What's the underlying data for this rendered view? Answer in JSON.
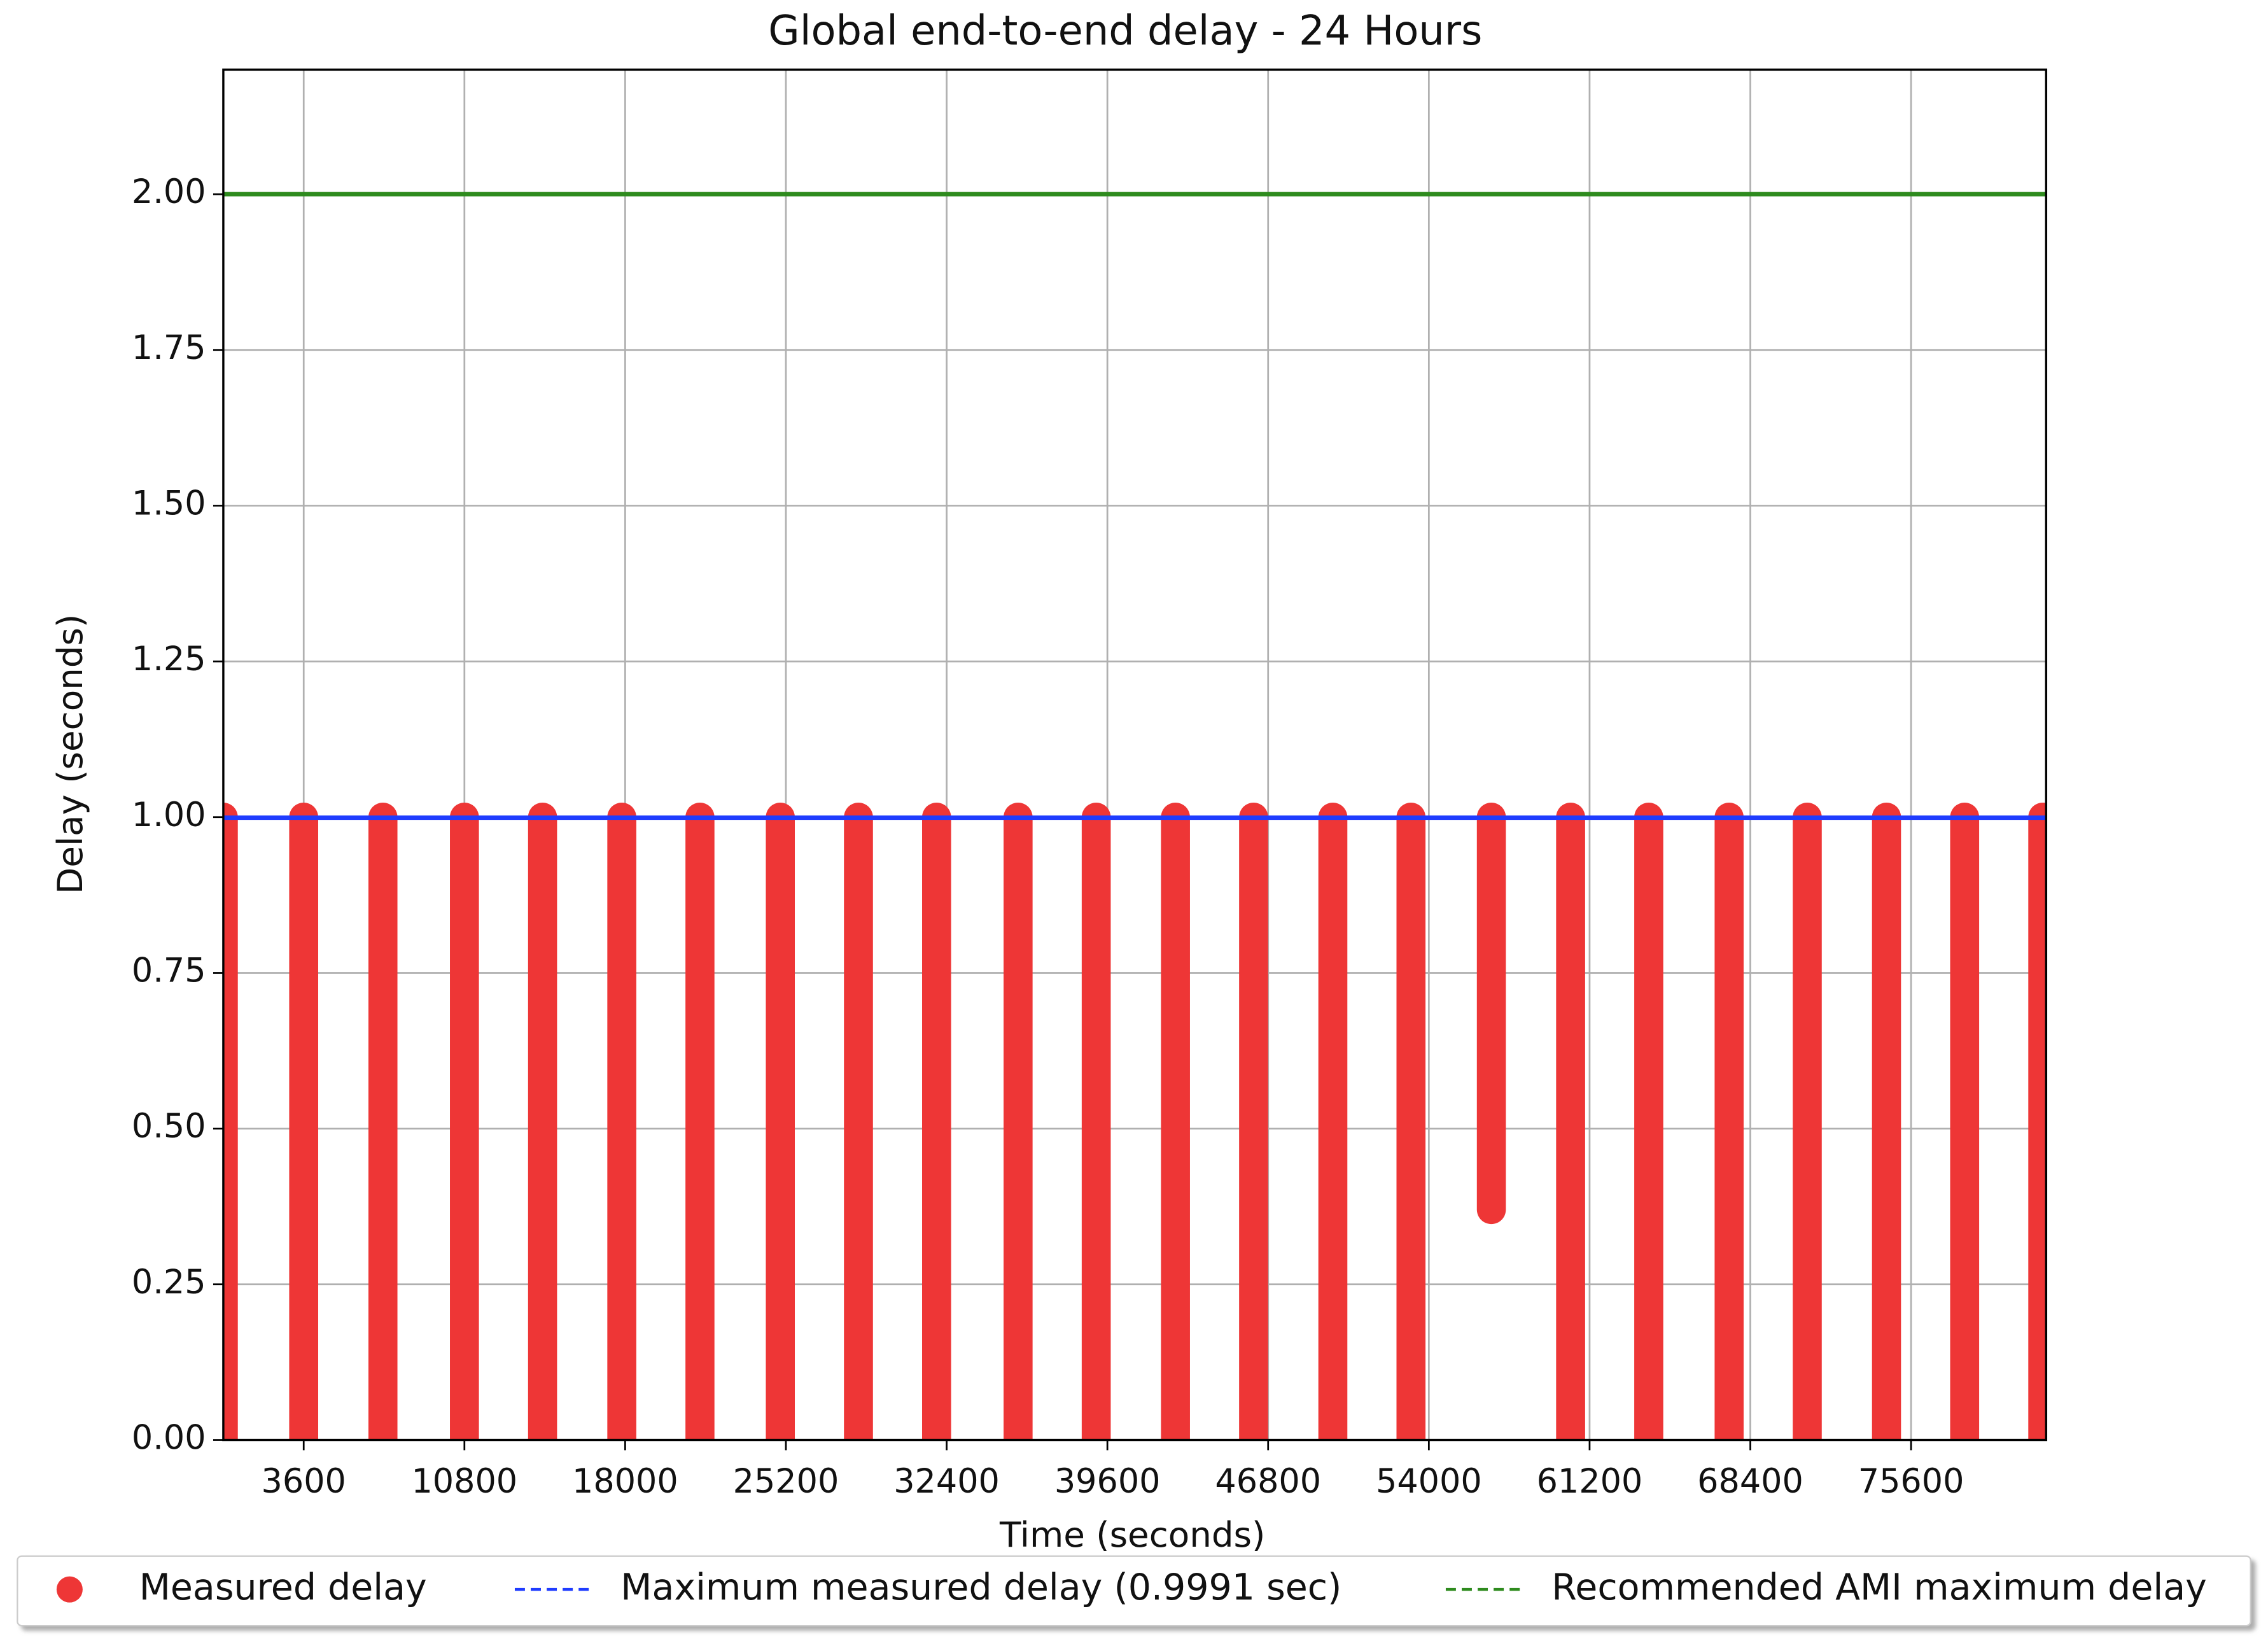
{
  "chart_data": {
    "type": "range-scatter",
    "title": "Global end-to-end delay - 24 Hours",
    "x_label": "Time (seconds)",
    "y_label": "Delay (seconds)",
    "xlim": [
      0,
      81650
    ],
    "ylim": [
      0,
      2.2
    ],
    "xticks": [
      3600,
      10800,
      18000,
      25200,
      32400,
      39600,
      46800,
      54000,
      61200,
      68400,
      75600
    ],
    "yticks": [
      {
        "value": 0,
        "label": "0.00"
      },
      {
        "value": 0.25,
        "label": "0.25"
      },
      {
        "value": 0.5,
        "label": "0.50"
      },
      {
        "value": 0.75,
        "label": "0.75"
      },
      {
        "value": 1,
        "label": "1.00"
      },
      {
        "value": 1.25,
        "label": "1.25"
      },
      {
        "value": 1.5,
        "label": "1.50"
      },
      {
        "value": 1.75,
        "label": "1.75"
      },
      {
        "value": 2,
        "label": "2.00"
      }
    ],
    "grid": true,
    "legend": "bottom",
    "series": [
      {
        "name": "Measured delay",
        "color": "#ee3636",
        "x": [
          0,
          3600,
          7150,
          10800,
          14300,
          17850,
          21350,
          24950,
          28450,
          31950,
          35600,
          39100,
          42650,
          46150,
          49700,
          53200,
          56800,
          60350,
          63850,
          67450,
          70950,
          74500,
          78000,
          81500
        ],
        "y_min": [
          0,
          0,
          0,
          0,
          0,
          0,
          0,
          0,
          0,
          0,
          0,
          0,
          0,
          0,
          0,
          0,
          0.37,
          0,
          0,
          0,
          0,
          0,
          0,
          0
        ],
        "y_max": [
          1,
          1,
          1,
          1,
          1,
          1,
          1,
          1,
          1,
          1,
          1,
          1,
          1,
          1,
          1,
          1,
          1,
          1,
          1,
          1,
          1,
          1,
          1,
          1
        ]
      }
    ],
    "hlines": [
      {
        "name": "Maximum measured delay (0.9991 sec)",
        "value": 0.9991,
        "color": "#1f3cff"
      },
      {
        "name": "Recommended AMI maximum delay",
        "value": 2,
        "color": "#2e8b1e"
      }
    ]
  }
}
